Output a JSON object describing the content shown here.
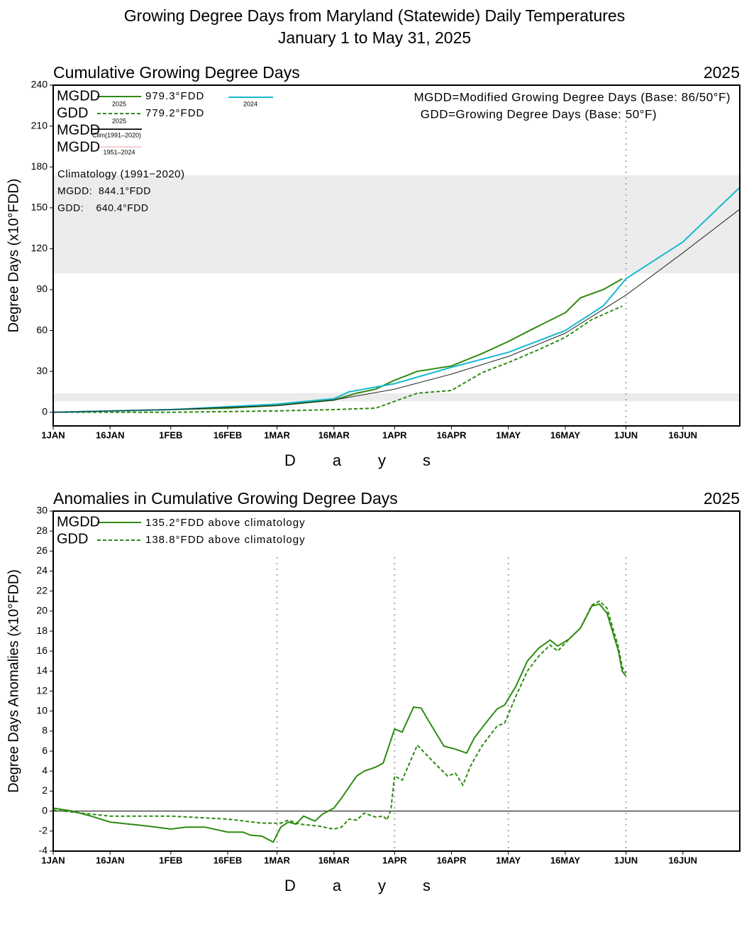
{
  "title": "Growing Degree Days from Maryland (Statewide) Daily Temperatures",
  "subtitle": "January 1 to May 31, 2025",
  "chart_data": [
    {
      "type": "line",
      "title": "Cumulative Growing Degree Days",
      "year_label": "2025",
      "ylabel": "Degree Days (x10°FDD)",
      "xlabel": "Days",
      "xlim": [
        0,
        181
      ],
      "ylim": [
        -10,
        240
      ],
      "xticks": [
        {
          "value": 0,
          "label": "1JAN"
        },
        {
          "value": 15,
          "label": "16JAN"
        },
        {
          "value": 31,
          "label": "1FEB"
        },
        {
          "value": 46,
          "label": "16FEB"
        },
        {
          "value": 59,
          "label": "1MAR"
        },
        {
          "value": 74,
          "label": "16MAR"
        },
        {
          "value": 90,
          "label": "1APR"
        },
        {
          "value": 105,
          "label": "16APR"
        },
        {
          "value": 120,
          "label": "1MAY"
        },
        {
          "value": 135,
          "label": "16MAY"
        },
        {
          "value": 151,
          "label": "1JUN"
        },
        {
          "value": 166,
          "label": "16JUN"
        }
      ],
      "yticks": [
        0,
        30,
        60,
        90,
        120,
        150,
        180,
        210,
        240
      ],
      "bands": [
        [
          102,
          174
        ],
        [
          8,
          14
        ]
      ],
      "band_color": "#ececec",
      "vlines": [
        151
      ],
      "zero_line": false,
      "series": [
        {
          "name": "MGDD",
          "subscript": "2025",
          "note": "979.3°FDD",
          "color": "#2e8b12",
          "dash": false,
          "x": [
            0,
            15,
            31,
            46,
            59,
            74,
            80,
            85,
            90,
            96,
            105,
            113,
            120,
            127,
            135,
            139,
            145,
            150
          ],
          "values": [
            0,
            1,
            2,
            3,
            5,
            9,
            14,
            17,
            23.5,
            30,
            34,
            43,
            52,
            62,
            73,
            84,
            90,
            97.9
          ]
        },
        {
          "name": "GDD",
          "subscript": "2025",
          "note": "779.2°FDD",
          "color": "#2e8b12",
          "dash": true,
          "x": [
            0,
            31,
            59,
            74,
            85,
            90,
            96,
            105,
            113,
            120,
            128,
            135,
            142,
            150
          ],
          "values": [
            0,
            0,
            1,
            2,
            3,
            8,
            14,
            16,
            29,
            36.5,
            46,
            55,
            68,
            77.9
          ]
        },
        {
          "name": "2024",
          "color": "#17b8cf",
          "dash": false,
          "x": [
            0,
            31,
            59,
            74,
            78,
            90,
            105,
            120,
            135,
            145,
            151,
            166,
            181
          ],
          "values": [
            0,
            2,
            6,
            10,
            15,
            21,
            33,
            44,
            60,
            78,
            98,
            125,
            165
          ]
        },
        {
          "name": "MGDD",
          "subscript": "Clim(1991–2020)",
          "color": "#222222",
          "dash": false,
          "x": [
            0,
            31,
            59,
            74,
            90,
            105,
            120,
            135,
            151,
            166,
            181
          ],
          "values": [
            0,
            2,
            5,
            9,
            17,
            28,
            41,
            58,
            86,
            117,
            149
          ]
        },
        {
          "name": "MGDD",
          "subscript": "1951–2024",
          "color": "#e8a0a0",
          "dash": false
        }
      ],
      "annotations": [
        "MGDD=Modified Growing Degree Days (Base: 86/50°F)",
        "GDD=Growing Degree Days (Base: 50°F)",
        "Climatology (1991−2020)",
        "MGDD:  844.1°FDD",
        "GDD:    640.4°FDD"
      ]
    },
    {
      "type": "line",
      "title": "Anomalies in Cumulative Growing Degree Days",
      "year_label": "2025",
      "ylabel": "Degree Days Anomalies (x10°FDD)",
      "xlabel": "Days",
      "xlim": [
        0,
        181
      ],
      "ylim": [
        -4,
        30
      ],
      "xticks": [
        {
          "value": 0,
          "label": "1JAN"
        },
        {
          "value": 15,
          "label": "16JAN"
        },
        {
          "value": 31,
          "label": "1FEB"
        },
        {
          "value": 46,
          "label": "16FEB"
        },
        {
          "value": 59,
          "label": "1MAR"
        },
        {
          "value": 74,
          "label": "16MAR"
        },
        {
          "value": 90,
          "label": "1APR"
        },
        {
          "value": 105,
          "label": "16APR"
        },
        {
          "value": 120,
          "label": "1MAY"
        },
        {
          "value": 135,
          "label": "16MAY"
        },
        {
          "value": 151,
          "label": "1JUN"
        },
        {
          "value": 166,
          "label": "16JUN"
        }
      ],
      "yticks": [
        -4,
        -2,
        0,
        2,
        4,
        6,
        8,
        10,
        12,
        14,
        16,
        18,
        20,
        22,
        24,
        26,
        28,
        30
      ],
      "bands": [],
      "band_color": "#ececec",
      "vlines": [
        59,
        90,
        120,
        151
      ],
      "zero_line": true,
      "series": [
        {
          "name": "MGDD",
          "note": "135.2°FDD above climatology",
          "color": "#2e8b12",
          "dash": false,
          "x": [
            0,
            5,
            10,
            15,
            25,
            31,
            35,
            40,
            46,
            50,
            52,
            55,
            58,
            60,
            62,
            64,
            66,
            69,
            71,
            74,
            76,
            80,
            82,
            85,
            87,
            90,
            92,
            95,
            97,
            99,
            103,
            106,
            109,
            111,
            114,
            117,
            119,
            122,
            125,
            128,
            131,
            133,
            136,
            139,
            142,
            144,
            146,
            149,
            150,
            151
          ],
          "values": [
            0.3,
            0,
            -0.5,
            -1.1,
            -1.5,
            -1.8,
            -1.6,
            -1.6,
            -2.1,
            -2.1,
            -2.4,
            -2.5,
            -3.1,
            -1.6,
            -1.1,
            -1.3,
            -0.5,
            -1,
            -0.3,
            0.3,
            1.3,
            3.5,
            4,
            4.4,
            4.8,
            8.2,
            7.9,
            10.4,
            10.3,
            9,
            6.5,
            6.2,
            5.8,
            7.3,
            8.8,
            10.2,
            10.6,
            12.5,
            15,
            16.3,
            17.1,
            16.5,
            17.2,
            18.3,
            20.5,
            20.7,
            19.8,
            16,
            14,
            13.5
          ]
        },
        {
          "name": "GDD",
          "note": "138.8°FDD above climatology",
          "color": "#2e8b12",
          "dash": true,
          "x": [
            0,
            10,
            15,
            31,
            46,
            55,
            60,
            62,
            65,
            70,
            74,
            76,
            78,
            80,
            82,
            85,
            87,
            88,
            89,
            90,
            92,
            96,
            100,
            104,
            106,
            108,
            110,
            113,
            117,
            119,
            122,
            125,
            128,
            131,
            133,
            136,
            139,
            142,
            144,
            146,
            149,
            150,
            151
          ],
          "values": [
            0.1,
            -0.3,
            -0.5,
            -0.5,
            -0.8,
            -1.2,
            -1.2,
            -0.9,
            -1.3,
            -1.5,
            -1.8,
            -1.6,
            -0.8,
            -0.9,
            -0.2,
            -0.6,
            -0.5,
            -0.9,
            0.1,
            3.5,
            3.1,
            6.6,
            5,
            3.5,
            3.8,
            2.6,
            4.5,
            6.5,
            8.5,
            8.8,
            11.5,
            14,
            15.5,
            16.6,
            16,
            17.2,
            18.3,
            20.6,
            21,
            20.3,
            16.4,
            14.4,
            13.8
          ]
        }
      ],
      "annotations": []
    }
  ]
}
